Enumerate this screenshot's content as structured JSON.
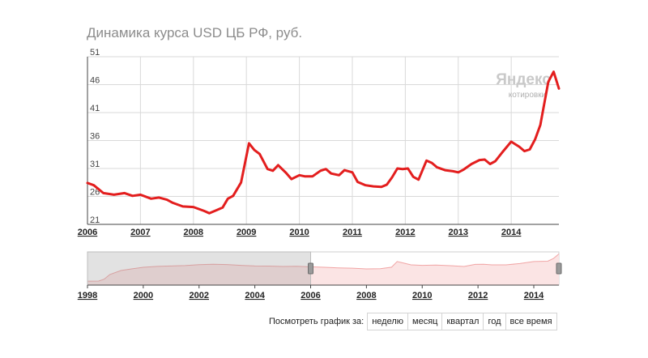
{
  "title": "Динамика курса USD ЦБ РФ, руб.",
  "logo": {
    "brand": "Яндекс",
    "sub": "котировки"
  },
  "period_selector": {
    "label": "Посмотреть график за:",
    "options": [
      "неделю",
      "месяц",
      "квартал",
      "год",
      "все время"
    ]
  },
  "colors": {
    "series": "#e31e1e",
    "grid": "#d9d9d9",
    "navigator_fill": "#fbe4e4",
    "navigator_line": "#f1a5a5"
  },
  "chart_data": [
    {
      "type": "line",
      "title": "Динамика курса USD ЦБ РФ, руб.",
      "xlim": [
        2006,
        2014.9
      ],
      "ylim": [
        21,
        51
      ],
      "yticks": [
        21,
        26,
        31,
        36,
        41,
        46,
        51
      ],
      "xticks": [
        2006,
        2007,
        2008,
        2009,
        2010,
        2011,
        2012,
        2013,
        2014
      ],
      "grid": true,
      "series": [
        {
          "x": [
            2006.0,
            2006.12,
            2006.3,
            2006.5,
            2006.7,
            2006.85,
            2007.0,
            2007.2,
            2007.35,
            2007.5,
            2007.6,
            2007.8,
            2008.0,
            2008.2,
            2008.3,
            2008.45,
            2008.55,
            2008.65,
            2008.75,
            2008.9,
            2009.05,
            2009.15,
            2009.25,
            2009.4,
            2009.5,
            2009.6,
            2009.75,
            2009.85,
            2010.0,
            2010.1,
            2010.25,
            2010.4,
            2010.5,
            2010.6,
            2010.75,
            2010.85,
            2011.0,
            2011.1,
            2011.25,
            2011.4,
            2011.55,
            2011.65,
            2011.75,
            2011.85,
            2011.95,
            2012.05,
            2012.15,
            2012.25,
            2012.4,
            2012.5,
            2012.6,
            2012.75,
            2012.9,
            2013.0,
            2013.1,
            2013.25,
            2013.4,
            2013.5,
            2013.6,
            2013.7,
            2013.85,
            2014.0,
            2014.15,
            2014.25,
            2014.35,
            2014.45,
            2014.55,
            2014.7,
            2014.8,
            2014.9
          ],
          "y": [
            28.4,
            28.0,
            26.6,
            26.3,
            26.6,
            26.1,
            26.3,
            25.6,
            25.8,
            25.4,
            24.9,
            24.2,
            24.1,
            23.4,
            23.0,
            23.6,
            24.0,
            25.6,
            26.1,
            28.5,
            35.5,
            34.3,
            33.6,
            30.9,
            30.6,
            31.6,
            30.2,
            29.1,
            29.8,
            29.6,
            29.6,
            30.6,
            30.9,
            30.1,
            29.8,
            30.7,
            30.3,
            28.6,
            28.0,
            27.8,
            27.7,
            28.1,
            29.4,
            31.0,
            30.9,
            31.0,
            29.5,
            29.0,
            32.4,
            32.0,
            31.2,
            30.7,
            30.5,
            30.3,
            30.8,
            31.8,
            32.5,
            32.6,
            31.8,
            32.3,
            34.1,
            35.8,
            34.9,
            34.1,
            34.4,
            36.2,
            38.8,
            46.5,
            48.3,
            45.3
          ]
        }
      ]
    },
    {
      "type": "area",
      "xlim": [
        1998,
        2014.9
      ],
      "xticks": [
        1998,
        2000,
        2002,
        2004,
        2006,
        2008,
        2010,
        2012,
        2014
      ],
      "selected_range": [
        1998,
        2006
      ],
      "series": [
        {
          "x": [
            1998.0,
            1998.4,
            1998.6,
            1998.8,
            1999.2,
            1999.6,
            2000.0,
            2000.5,
            2001.0,
            2001.5,
            2002.0,
            2002.5,
            2003.0,
            2003.5,
            2004.0,
            2004.5,
            2005.0,
            2005.5,
            2006.0,
            2006.5,
            2007.0,
            2007.5,
            2008.0,
            2008.5,
            2008.9,
            2009.1,
            2009.3,
            2009.6,
            2010.0,
            2010.5,
            2011.0,
            2011.5,
            2011.9,
            2012.2,
            2012.5,
            2013.0,
            2013.5,
            2014.0,
            2014.5,
            2014.7,
            2014.9
          ],
          "y": [
            6,
            6.1,
            9,
            16,
            22,
            24.5,
            26.8,
            28.2,
            28.8,
            29.4,
            30.8,
            31.4,
            31.0,
            29.8,
            28.8,
            28.6,
            28.0,
            28.4,
            27.5,
            26.8,
            26.0,
            25.5,
            24.4,
            24.8,
            27,
            35.5,
            33.5,
            30.5,
            29.7,
            30.2,
            29.3,
            28.0,
            31.2,
            31.5,
            30.5,
            30.5,
            32.5,
            35.5,
            36.0,
            40,
            47
          ]
        }
      ]
    }
  ]
}
